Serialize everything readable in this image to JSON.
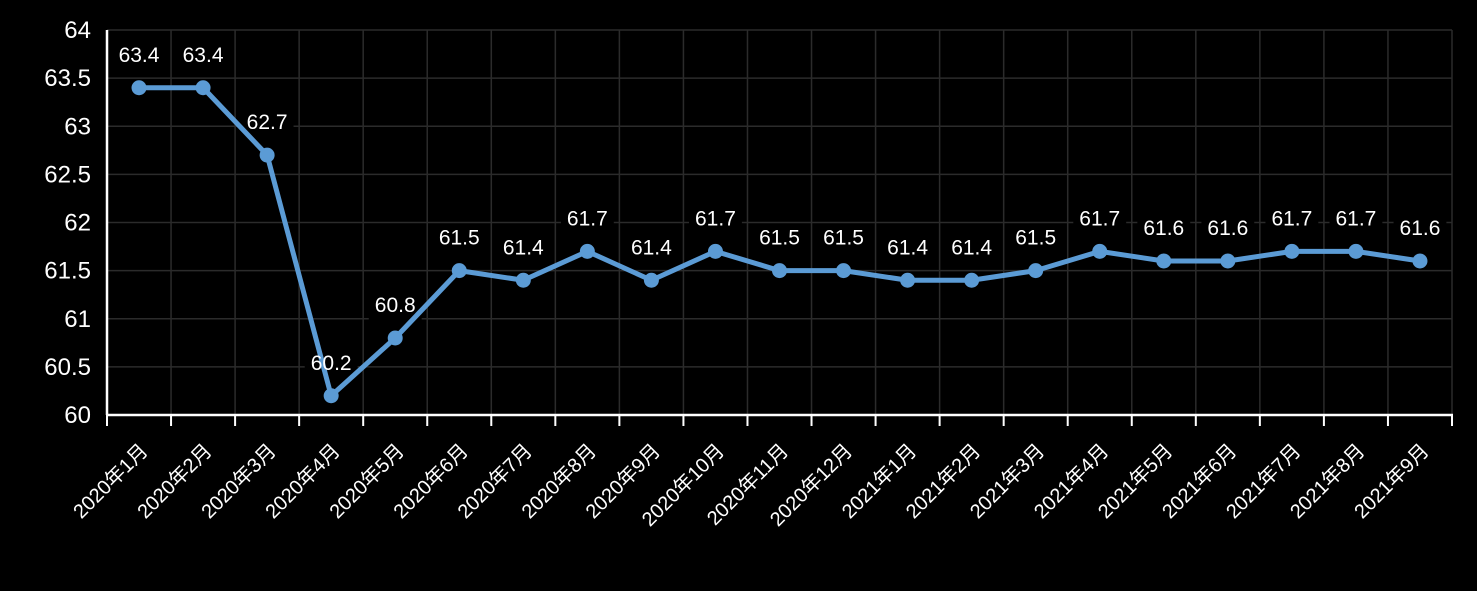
{
  "chart_data": {
    "type": "line",
    "title": "",
    "xlabel": "",
    "ylabel": "",
    "categories": [
      "2020年1月",
      "2020年2月",
      "2020年3月",
      "2020年4月",
      "2020年5月",
      "2020年6月",
      "2020年7月",
      "2020年8月",
      "2020年9月",
      "2020年10月",
      "2020年11月",
      "2020年12月",
      "2021年1月",
      "2021年2月",
      "2021年3月",
      "2021年4月",
      "2021年5月",
      "2021年6月",
      "2021年7月",
      "2021年8月",
      "2021年9月"
    ],
    "values": [
      63.4,
      63.4,
      62.7,
      60.2,
      60.8,
      61.5,
      61.4,
      61.7,
      61.4,
      61.7,
      61.5,
      61.5,
      61.4,
      61.4,
      61.5,
      61.7,
      61.6,
      61.6,
      61.7,
      61.7,
      61.6
    ],
    "data_labels": [
      "63.4",
      "63.4",
      "62.7",
      "60.2",
      "60.8",
      "61.5",
      "61.4",
      "61.7",
      "61.4",
      "61.7",
      "61.5",
      "61.5",
      "61.4",
      "61.4",
      "61.5",
      "61.7",
      "61.6",
      "61.6",
      "61.7",
      "61.7",
      "61.6"
    ],
    "ylim": [
      60,
      64
    ],
    "ytick_step": 0.5,
    "ytick_labels": [
      "60",
      "60.5",
      "61",
      "61.5",
      "62",
      "62.5",
      "63",
      "63.5",
      "64"
    ],
    "grid": true,
    "legend": false,
    "x_label_rotation_deg": -45,
    "colors": {
      "background": "#000000",
      "line": "#5B9BD5",
      "marker": "#5B9BD5",
      "text": "#FFFFFF",
      "grid": "#2B2B2B",
      "axis": "#FFFFFF",
      "data_label_bg": "#000000"
    }
  }
}
